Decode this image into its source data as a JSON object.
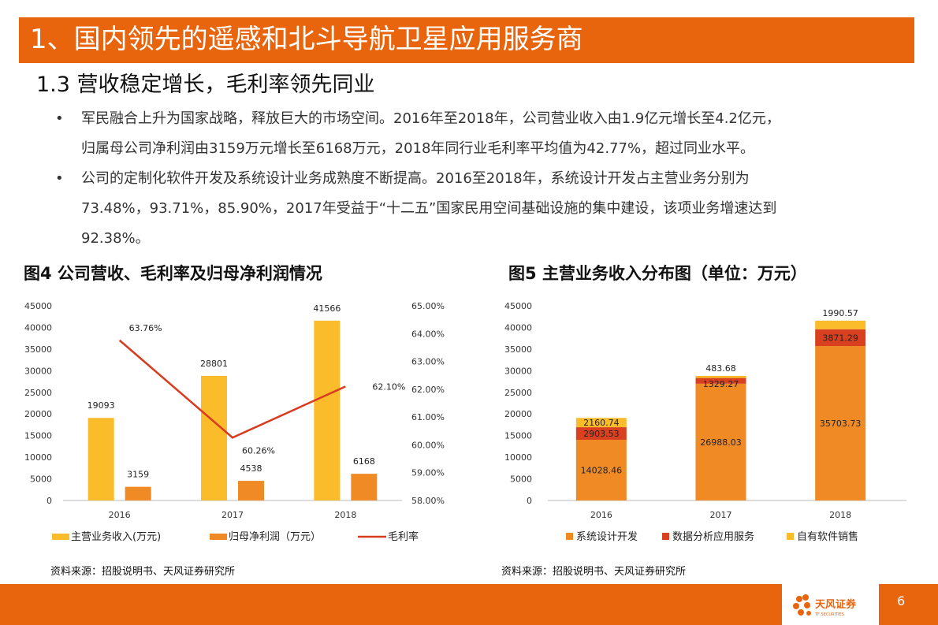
{
  "header": {
    "title": "1、国内领先的遥感和北斗导航卫星应用服务商",
    "subtitle": "1.3 营收稳定增长，毛利率领先同业"
  },
  "bullets": {
    "marker": "•",
    "items": [
      {
        "line1": "军民融合上升为国家战略，释放巨大的市场空间。2016年至2018年，公司营业收入由1.9亿元增长至4.2亿元，",
        "line2": "归属母公司净利润由3159万元增长至6168万元，2018年同行业毛利率平均值为42.77%，超过同业水平。"
      },
      {
        "line1": "公司的定制化软件开发及系统设计业务成熟度不断提高。2016至2018年，系统设计开发占主营业务分别为",
        "line2": "73.48%，93.71%，85.90%，2017年受益于“十二五”国家民用空间基础设施的集中建设，该项业务增速达到",
        "line3": "92.38%。"
      }
    ]
  },
  "figures": {
    "fig4_title": "图4  公司营收、毛利率及归母净利润情况",
    "fig5_title": "图5  主营业务收入分布图（单位：万元）",
    "source": "资料来源：招股说明书、天风证券研究所"
  },
  "footer": {
    "page": "6",
    "logo_text": "天风证券",
    "logo_sub": "TF SECURITIES"
  },
  "colors": {
    "accent": "#e8650e",
    "bar_yellow": "#fbbc2c",
    "bar_orange": "#f08a24",
    "bar_red": "#d9401f",
    "line_red": "#d83b1e"
  },
  "chart_data": [
    {
      "type": "bar",
      "categories": [
        "2016",
        "2017",
        "2018"
      ],
      "series": [
        {
          "name": "主营业务收入(万元)",
          "values": [
            19093,
            28801,
            41566
          ],
          "color": "#fbbc2c"
        },
        {
          "name": "归母净利润（万元）",
          "values": [
            3159,
            4538,
            6168
          ],
          "color": "#f08a24"
        }
      ],
      "line": {
        "name": "毛利率",
        "values": [
          63.76,
          60.26,
          62.1
        ],
        "labels": [
          "63.76%",
          "60.26%",
          "62.10%"
        ],
        "color": "#d83b1e"
      },
      "ylim": [
        0,
        45000
      ],
      "yticks": [
        "0",
        "5000",
        "10000",
        "15000",
        "20000",
        "25000",
        "30000",
        "35000",
        "40000",
        "45000"
      ],
      "y2lim": [
        58,
        65
      ],
      "y2ticks": [
        "58.00%",
        "59.00%",
        "60.00%",
        "61.00%",
        "62.00%",
        "63.00%",
        "64.00%",
        "65.00%"
      ],
      "legend": "bottom"
    },
    {
      "type": "bar",
      "stacked": true,
      "categories": [
        "2016",
        "2017",
        "2018"
      ],
      "series": [
        {
          "name": "系统设计开发",
          "values": [
            14028.46,
            26988.03,
            35703.73
          ],
          "labels": [
            "14028.46",
            "26988.03",
            "35703.73"
          ],
          "color": "#f08a24"
        },
        {
          "name": "数据分析应用服务",
          "values": [
            2903.53,
            1329.27,
            3871.29
          ],
          "labels": [
            "2903.53",
            "1329.27",
            "3871.29"
          ],
          "color": "#d9401f"
        },
        {
          "name": "自有软件销售",
          "values": [
            2160.74,
            483.68,
            1990.57
          ],
          "labels": [
            "2160.74",
            "483.68",
            "1990.57"
          ],
          "color": "#fbbc2c"
        }
      ],
      "ylim": [
        0,
        45000
      ],
      "yticks": [
        "0",
        "5000",
        "10000",
        "15000",
        "20000",
        "25000",
        "30000",
        "35000",
        "40000",
        "45000"
      ],
      "legend": "bottom"
    }
  ]
}
